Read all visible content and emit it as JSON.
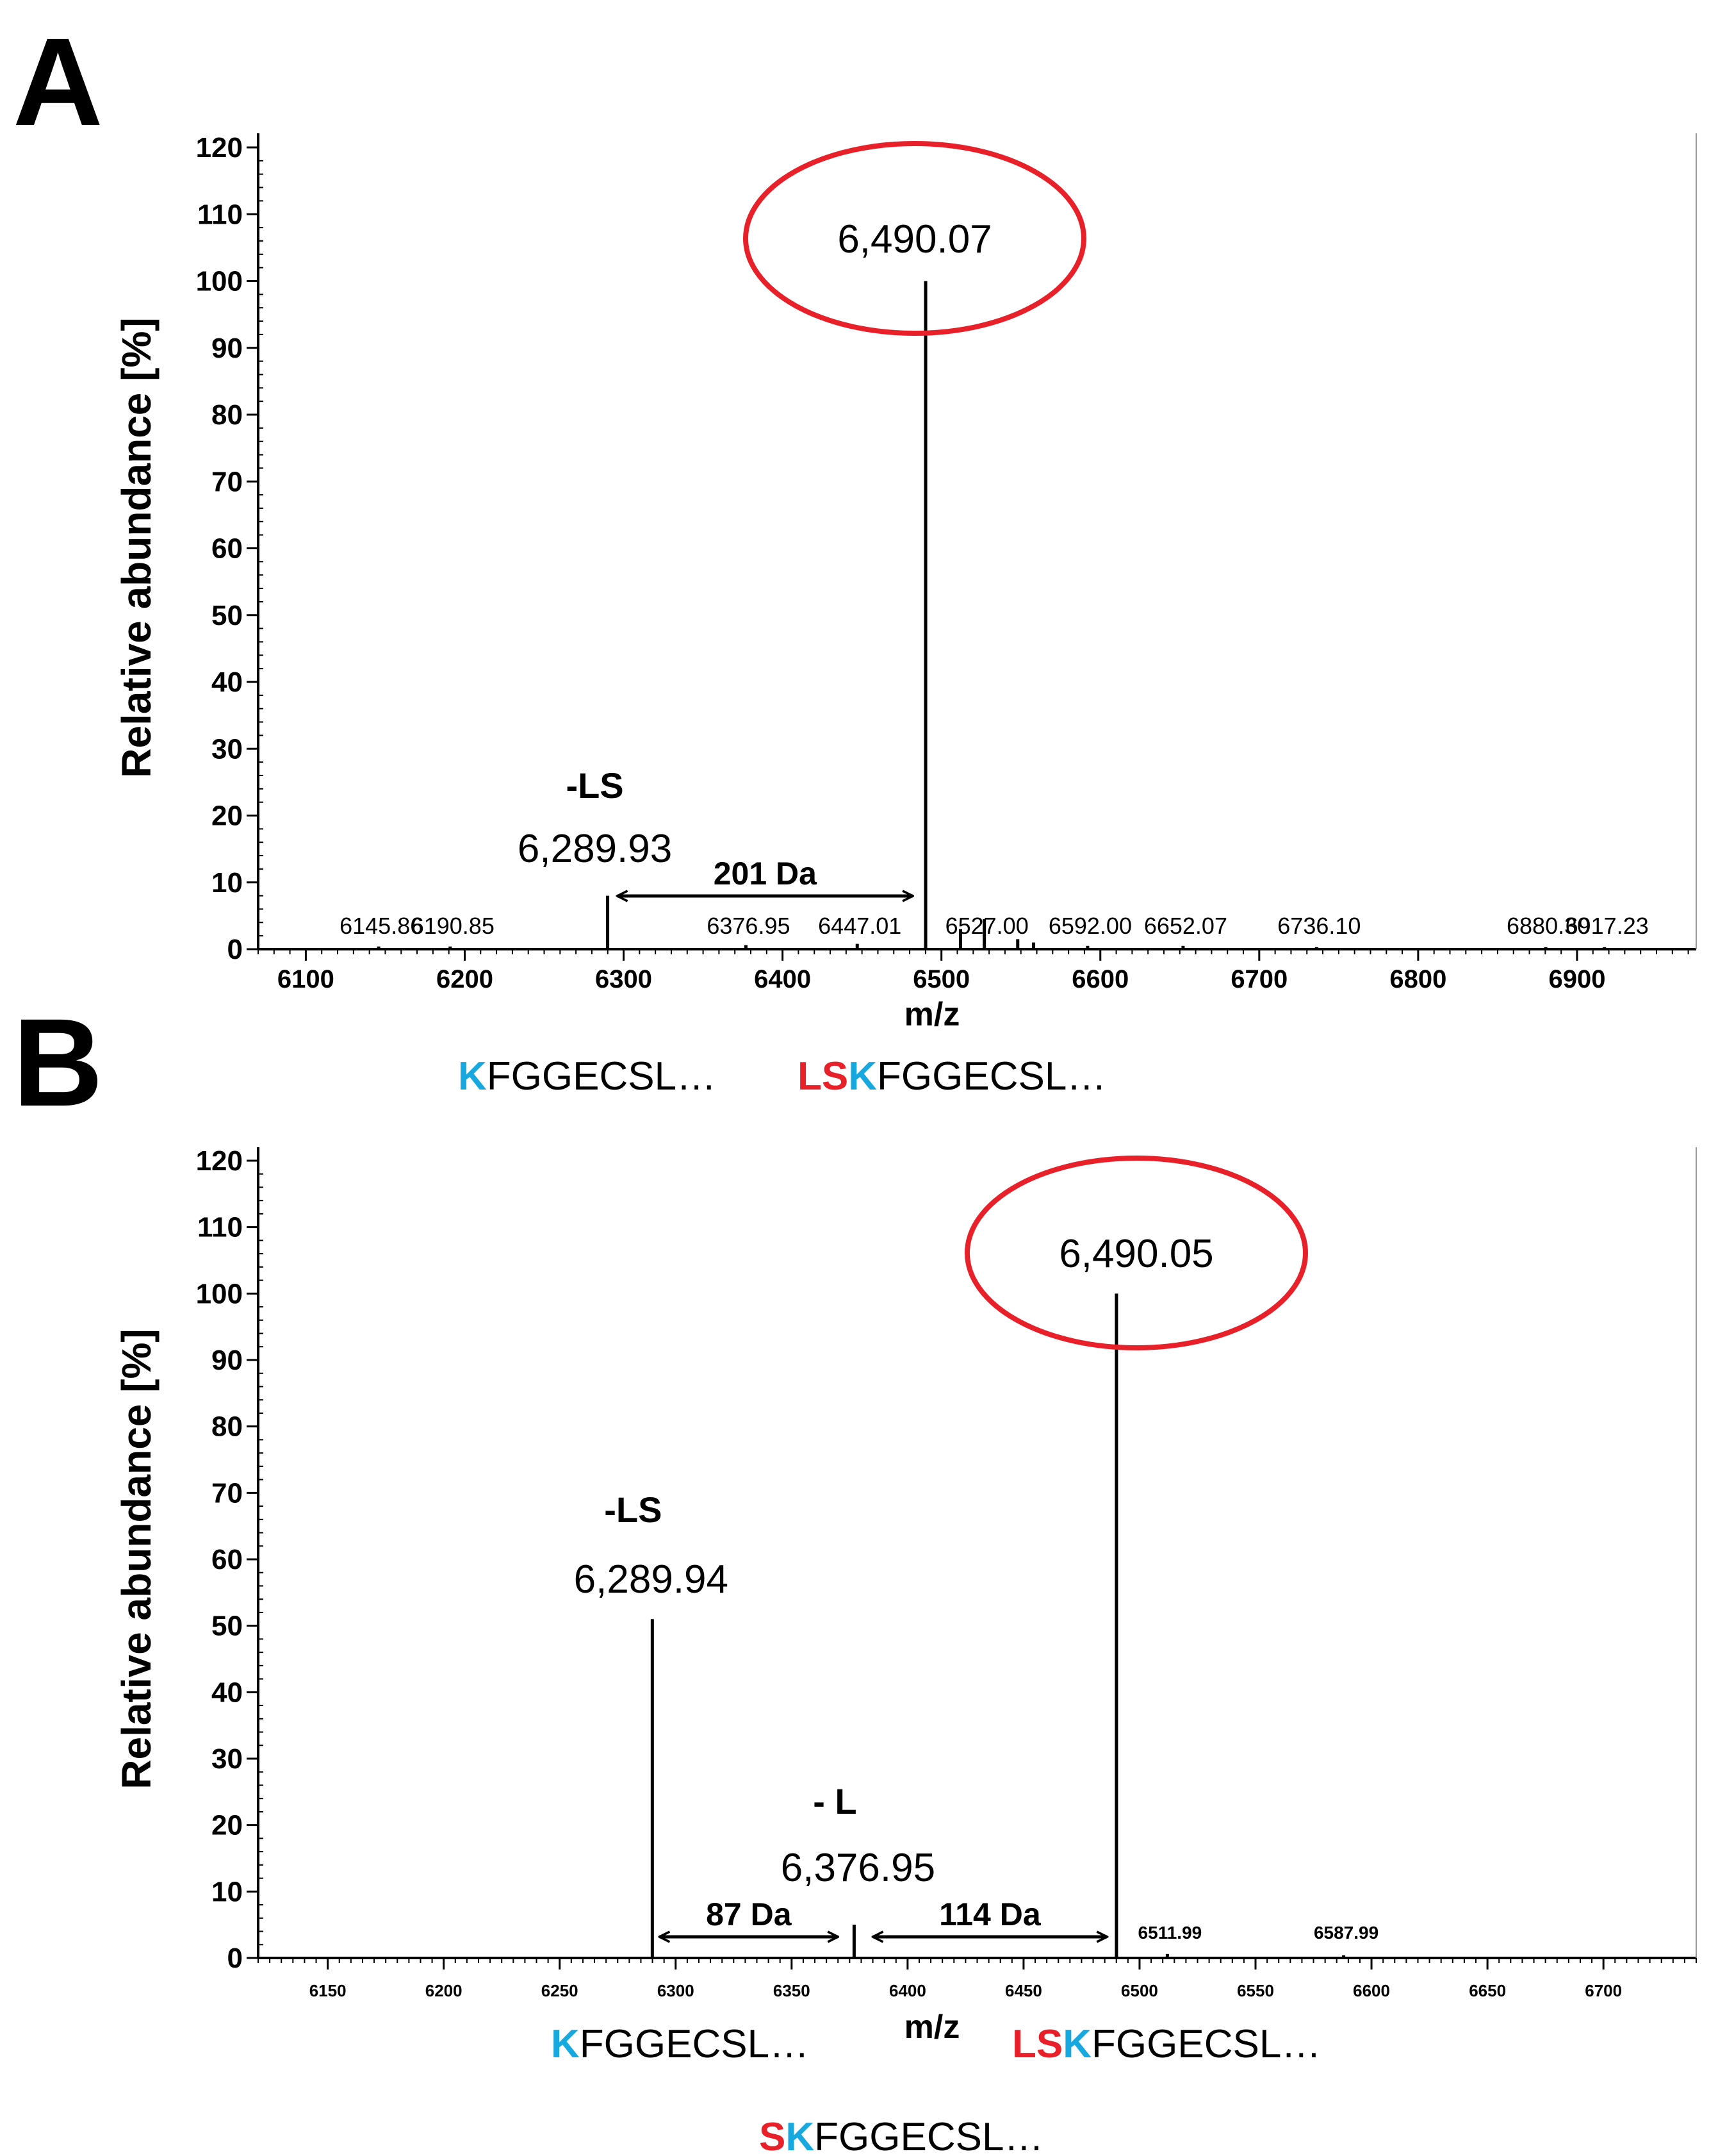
{
  "colors": {
    "red": "#e8202a",
    "blue": "#18a8e0",
    "axis": "#000000",
    "noise": "#7ec9a4"
  },
  "chart_data": [
    {
      "panel": "A",
      "type": "bar",
      "title": "",
      "xlabel": "m/z",
      "ylabel": "Relative abundance [%]",
      "xlim": [
        6070,
        6975
      ],
      "ylim": [
        0,
        120
      ],
      "xticks": [
        6100,
        6200,
        6300,
        6400,
        6500,
        6600,
        6700,
        6800,
        6900
      ],
      "xtick_labels": [
        "6100",
        "6200",
        "6300",
        "6400",
        "6500",
        "6600",
        "6700",
        "6800",
        "6900"
      ],
      "yticks": [
        0,
        10,
        20,
        30,
        40,
        50,
        60,
        70,
        80,
        90,
        100,
        110,
        120
      ],
      "ytick_labels": [
        "0",
        "10",
        "20",
        "30",
        "40",
        "50",
        "60",
        "70",
        "80",
        "90",
        "100",
        "110",
        "120"
      ],
      "peaks": [
        {
          "mz": 6145.86,
          "value": 0.4,
          "label": "6145.86"
        },
        {
          "mz": 6190.85,
          "value": 0.4,
          "label": "6190.85"
        },
        {
          "mz": 6289.93,
          "value": 8,
          "label": ""
        },
        {
          "mz": 6376.95,
          "value": 0.6,
          "label": "6376.95"
        },
        {
          "mz": 6447.01,
          "value": 0.8,
          "label": "6447.01"
        },
        {
          "mz": 6490.07,
          "value": 100,
          "label": ""
        },
        {
          "mz": 6512,
          "value": 3,
          "label": ""
        },
        {
          "mz": 6527.0,
          "value": 4.5,
          "label": "6527.00"
        },
        {
          "mz": 6548,
          "value": 1.5,
          "label": ""
        },
        {
          "mz": 6558,
          "value": 1,
          "label": ""
        },
        {
          "mz": 6592.0,
          "value": 0.5,
          "label": "6592.00"
        },
        {
          "mz": 6652.07,
          "value": 0.5,
          "label": "6652.07"
        },
        {
          "mz": 6736.1,
          "value": 0.3,
          "label": "6736.10"
        },
        {
          "mz": 6880.3,
          "value": 0.3,
          "label": "6880.30"
        },
        {
          "mz": 6917.23,
          "value": 0.3,
          "label": "6917.23"
        }
      ],
      "main_peak_label": "6,490.07",
      "loss_label": "-LS",
      "loss_peak_label": "6,289.93",
      "mass_diffs": [
        {
          "from": 6296,
          "to": 6482,
          "label": "201 Da"
        }
      ],
      "sequences": [
        {
          "parts": [
            {
              "text": "K",
              "color": "blue"
            },
            {
              "text": "FGGECSL…",
              "color": "black"
            }
          ]
        },
        {
          "parts": [
            {
              "text": "L",
              "color": "red"
            },
            {
              "text": "S",
              "color": "red"
            },
            {
              "text": "K",
              "color": "blue"
            },
            {
              "text": "FGGECSL…",
              "color": "black"
            }
          ]
        }
      ]
    },
    {
      "panel": "B",
      "type": "bar",
      "title": "",
      "xlabel": "m/z",
      "ylabel": "Relative abundance [%]",
      "xlim": [
        6120,
        6740
      ],
      "ylim": [
        0,
        120
      ],
      "xticks": [
        6150,
        6200,
        6250,
        6300,
        6350,
        6400,
        6450,
        6500,
        6550,
        6600,
        6650,
        6700
      ],
      "xtick_labels": [
        "6150",
        "6200",
        "6250",
        "6300",
        "6350",
        "6400",
        "6450",
        "6500",
        "6550",
        "6600",
        "6650",
        "6700"
      ],
      "yticks": [
        0,
        10,
        20,
        30,
        40,
        50,
        60,
        70,
        80,
        90,
        100,
        110,
        120
      ],
      "ytick_labels": [
        "0",
        "10",
        "20",
        "30",
        "40",
        "50",
        "60",
        "70",
        "80",
        "90",
        "100",
        "110",
        "120"
      ],
      "peaks": [
        {
          "mz": 6289.94,
          "value": 51,
          "label": ""
        },
        {
          "mz": 6376.95,
          "value": 5,
          "label": ""
        },
        {
          "mz": 6490.05,
          "value": 100,
          "label": ""
        },
        {
          "mz": 6511.99,
          "value": 0.6,
          "label": "6511.99"
        },
        {
          "mz": 6587.99,
          "value": 0.4,
          "label": "6587.99"
        }
      ],
      "main_peak_label": "6,490.05",
      "loss_label": "-LS",
      "loss_peak_label": "6,289.94",
      "loss2_label": "- L",
      "loss2_peak_label": "6,376.95",
      "mass_diffs": [
        {
          "from": 6293,
          "to": 6370,
          "label": "87 Da"
        },
        {
          "from": 6385,
          "to": 6486,
          "label": "114 Da"
        }
      ],
      "sequences": [
        {
          "parts": [
            {
              "text": "K",
              "color": "blue"
            },
            {
              "text": "FGGECSL…",
              "color": "black"
            }
          ]
        },
        {
          "parts": [
            {
              "text": "L",
              "color": "red"
            },
            {
              "text": "S",
              "color": "red"
            },
            {
              "text": "K",
              "color": "blue"
            },
            {
              "text": "FGGECSL…",
              "color": "black"
            }
          ]
        },
        {
          "parts": [
            {
              "text": "S",
              "color": "red"
            },
            {
              "text": "K",
              "color": "blue"
            },
            {
              "text": "FGGECSL…",
              "color": "black"
            }
          ]
        }
      ]
    }
  ]
}
